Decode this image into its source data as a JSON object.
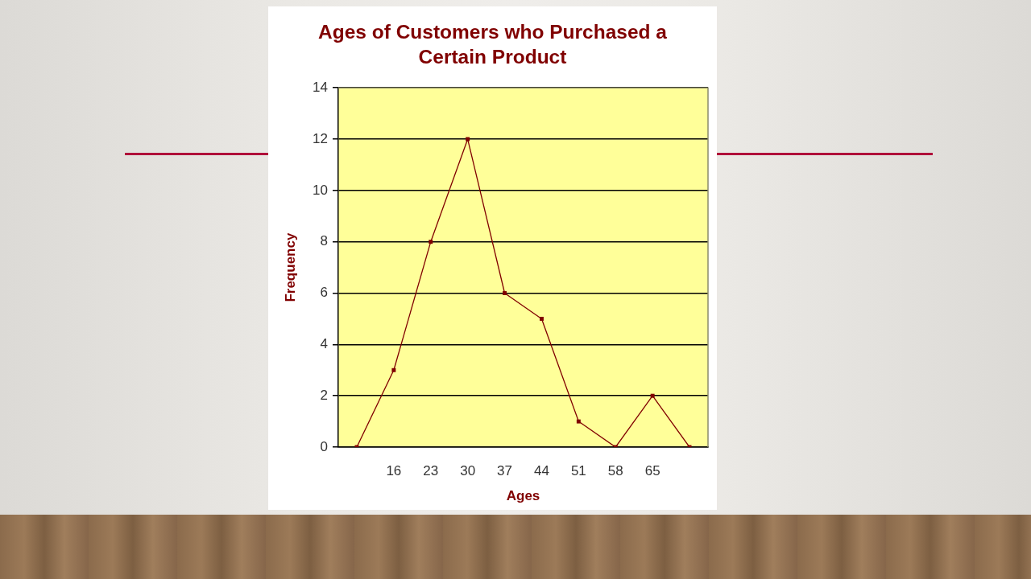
{
  "chart_data": {
    "type": "line",
    "title": "Ages of Customers who Purchased a Certain Product",
    "xlabel": "Ages",
    "ylabel": "Frequency",
    "categories": [
      null,
      "16",
      "23",
      "30",
      "37",
      "44",
      "51",
      "58",
      "65",
      null
    ],
    "series": [
      {
        "color": "#800000",
        "values": [
          0,
          3,
          8,
          12,
          6,
          5,
          1,
          0,
          2,
          0
        ]
      }
    ],
    "ylim": [
      0,
      14
    ],
    "yticks": [
      0,
      2,
      4,
      6,
      8,
      10,
      12,
      14
    ],
    "grid": "y",
    "marker": "square",
    "line_style": "solid"
  }
}
